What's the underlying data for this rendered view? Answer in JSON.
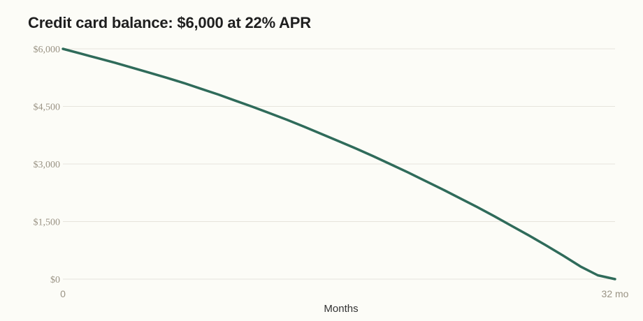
{
  "page": {
    "title": "Credit card balance: $6,000 at 22% APR"
  },
  "chart_data": {
    "type": "line",
    "title": "Credit card balance: $6,000 at 22% APR",
    "xlabel": "Months",
    "ylabel": "",
    "xlim": [
      0,
      32
    ],
    "ylim": [
      0,
      6000
    ],
    "grid": true,
    "y_ticks": [
      {
        "value": 0,
        "label": "$0"
      },
      {
        "value": 1500,
        "label": "$1,500"
      },
      {
        "value": 3000,
        "label": "$3,000"
      },
      {
        "value": 4500,
        "label": "$4,500"
      },
      {
        "value": 6000,
        "label": "$6,000"
      }
    ],
    "x_ticks": [
      {
        "value": 0,
        "label": "0"
      },
      {
        "value": 32,
        "label": "32 mo"
      }
    ],
    "series": [
      {
        "color": "#2f6b5a",
        "x": [
          0,
          1,
          2,
          3,
          4,
          5,
          6,
          7,
          8,
          9,
          10,
          11,
          12,
          13,
          14,
          15,
          16,
          17,
          18,
          19,
          20,
          21,
          22,
          23,
          24,
          25,
          26,
          27,
          28,
          29,
          30,
          31,
          32
        ],
        "values": [
          6000,
          5880,
          5760,
          5640,
          5510,
          5380,
          5250,
          5110,
          4960,
          4810,
          4650,
          4490,
          4320,
          4150,
          3970,
          3780,
          3590,
          3400,
          3200,
          2990,
          2780,
          2560,
          2340,
          2110,
          1880,
          1640,
          1390,
          1140,
          880,
          610,
          330,
          100,
          0
        ]
      }
    ]
  }
}
